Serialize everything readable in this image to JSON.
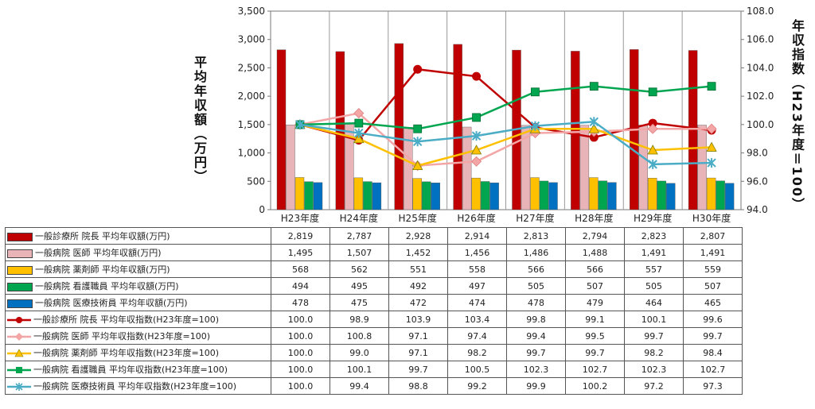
{
  "chart_data": {
    "type": "bar",
    "categories": [
      "H23年度",
      "H24年度",
      "H25年度",
      "H26年度",
      "H27年度",
      "H28年度",
      "H29年度",
      "H30年度"
    ],
    "ylabel_left": "平均年収額（万円）",
    "ylabel_right": "年収指数（H23年度＝100）",
    "ylim_left": [
      0,
      3500
    ],
    "yticks_left": [
      "0",
      "500",
      "1,000",
      "1,500",
      "2,000",
      "2,500",
      "3,000",
      "3,500"
    ],
    "ylim_right": [
      94,
      108
    ],
    "yticks_right": [
      "94.0",
      "96.0",
      "98.0",
      "100.0",
      "102.0",
      "104.0",
      "106.0",
      "108.0"
    ],
    "bar_series": [
      {
        "name": "一般診療所 院長 平均年収額(万円)",
        "color": "#C00000",
        "values": [
          2819,
          2787,
          2928,
          2914,
          2813,
          2794,
          2823,
          2807
        ],
        "labels": [
          "2,819",
          "2,787",
          "2,928",
          "2,914",
          "2,813",
          "2,794",
          "2,823",
          "2,807"
        ]
      },
      {
        "name": "一般病院 医師 平均年収額(万円)",
        "color": "#E8B4B8",
        "values": [
          1495,
          1507,
          1452,
          1456,
          1486,
          1488,
          1491,
          1491
        ],
        "labels": [
          "1,495",
          "1,507",
          "1,452",
          "1,456",
          "1,486",
          "1,488",
          "1,491",
          "1,491"
        ]
      },
      {
        "name": "一般病院 薬剤師 平均年収額(万円)",
        "color": "#FFC000",
        "values": [
          568,
          562,
          551,
          558,
          566,
          566,
          557,
          559
        ],
        "labels": [
          "568",
          "562",
          "551",
          "558",
          "566",
          "566",
          "557",
          "559"
        ]
      },
      {
        "name": "一般病院 看護職員 平均年収額(万円)",
        "color": "#00A550",
        "values": [
          494,
          495,
          492,
          497,
          505,
          507,
          505,
          507
        ],
        "labels": [
          "494",
          "495",
          "492",
          "497",
          "505",
          "507",
          "505",
          "507"
        ]
      },
      {
        "name": "一般病院 医療技術員 平均年収額(万円)",
        "color": "#0070C0",
        "values": [
          478,
          475,
          472,
          474,
          478,
          479,
          464,
          465
        ],
        "labels": [
          "478",
          "475",
          "472",
          "474",
          "478",
          "479",
          "464",
          "465"
        ]
      }
    ],
    "line_series": [
      {
        "name": "一般診療所 院長 平均年収指数(H23年度=100)",
        "color": "#C00000",
        "marker": "circle",
        "values": [
          100.0,
          98.9,
          103.9,
          103.4,
          99.8,
          99.1,
          100.1,
          99.6
        ],
        "labels": [
          "100.0",
          "98.9",
          "103.9",
          "103.4",
          "99.8",
          "99.1",
          "100.1",
          "99.6"
        ]
      },
      {
        "name": "一般病院 医師 平均年収指数(H23年度=100)",
        "color": "#F4A6A6",
        "marker": "diamond",
        "values": [
          100.0,
          100.8,
          97.1,
          97.4,
          99.4,
          99.5,
          99.7,
          99.7
        ],
        "labels": [
          "100.0",
          "100.8",
          "97.1",
          "97.4",
          "99.4",
          "99.5",
          "99.7",
          "99.7"
        ]
      },
      {
        "name": "一般病院 薬剤師 平均年収指数(H23年度=100)",
        "color": "#FFC000",
        "marker": "triangle",
        "values": [
          100.0,
          99.0,
          97.1,
          98.2,
          99.7,
          99.7,
          98.2,
          98.4
        ],
        "labels": [
          "100.0",
          "99.0",
          "97.1",
          "98.2",
          "99.7",
          "99.7",
          "98.2",
          "98.4"
        ]
      },
      {
        "name": "一般病院 看護職員 平均年収指数(H23年度=100)",
        "color": "#00A550",
        "marker": "square",
        "values": [
          100.0,
          100.1,
          99.7,
          100.5,
          102.3,
          102.7,
          102.3,
          102.7
        ],
        "labels": [
          "100.0",
          "100.1",
          "99.7",
          "100.5",
          "102.3",
          "102.7",
          "102.3",
          "102.7"
        ]
      },
      {
        "name": "一般病院 医療技術員 平均年収指数(H23年度=100)",
        "color": "#4BACC6",
        "marker": "star",
        "values": [
          100.0,
          99.4,
          98.8,
          99.2,
          99.9,
          100.2,
          97.2,
          97.3
        ],
        "labels": [
          "100.0",
          "99.4",
          "98.8",
          "99.2",
          "99.9",
          "100.2",
          "97.2",
          "97.3"
        ]
      }
    ],
    "grid": false,
    "legend": "data-table"
  }
}
